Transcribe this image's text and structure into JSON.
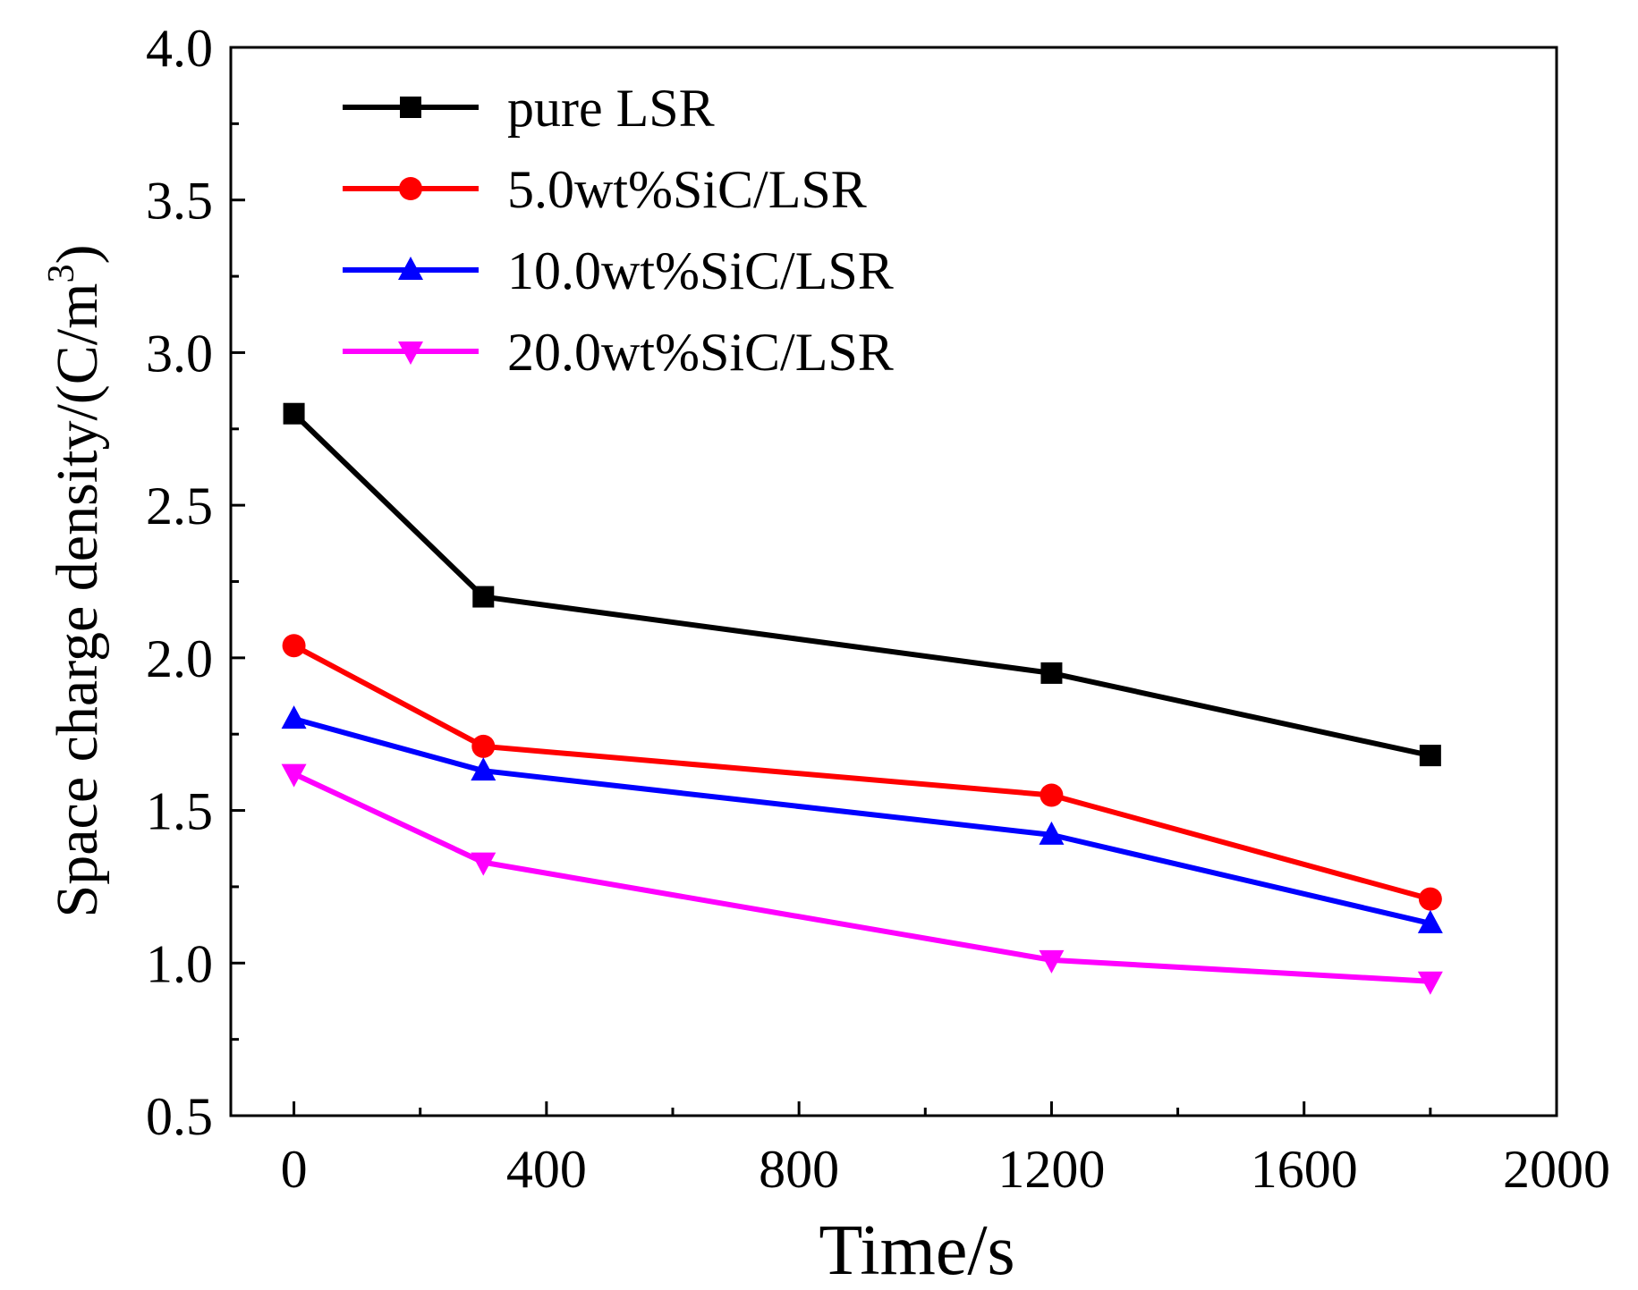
{
  "chart_data": {
    "type": "line",
    "title": "",
    "xlabel": "Time/s",
    "ylabel": "Space charge density/",
    "ylabel_unit": "(C/m",
    "ylabel_unit_sup": "3",
    "ylabel_unit_close": ")",
    "xlim": [
      -100,
      2000
    ],
    "ylim": [
      0.5,
      4.0
    ],
    "xticks": [
      0,
      400,
      800,
      1200,
      1600,
      2000
    ],
    "xtick_labels": [
      "0",
      "400",
      "800",
      "1200",
      "1600",
      "2000"
    ],
    "xminor": [
      200,
      600,
      1000,
      1400,
      1800
    ],
    "yticks": [
      0.5,
      1.0,
      1.5,
      2.0,
      2.5,
      3.0,
      3.5,
      4.0
    ],
    "ytick_labels": [
      "0.5",
      "1.0",
      "1.5",
      "2.0",
      "2.5",
      "3.0",
      "3.5",
      "4.0"
    ],
    "yminor": [
      0.75,
      1.25,
      1.75,
      2.25,
      2.75,
      3.25,
      3.75
    ],
    "grid": false,
    "legend_position": "top-left",
    "x": [
      0,
      300,
      1200,
      1800
    ],
    "series": [
      {
        "name": "pure LSR",
        "color": "#000000",
        "marker": "square",
        "values": [
          2.8,
          2.2,
          1.95,
          1.68
        ]
      },
      {
        "name": "5.0wt%SiC/LSR",
        "color": "#ff0000",
        "marker": "circle",
        "values": [
          2.04,
          1.71,
          1.55,
          1.21
        ]
      },
      {
        "name": "10.0wt%SiC/LSR",
        "color": "#0000ff",
        "marker": "triangle-up",
        "values": [
          1.8,
          1.63,
          1.42,
          1.13
        ]
      },
      {
        "name": "20.0wt%SiC/LSR",
        "color": "#ff00ff",
        "marker": "triangle-down",
        "values": [
          1.62,
          1.33,
          1.01,
          0.94
        ]
      }
    ]
  }
}
